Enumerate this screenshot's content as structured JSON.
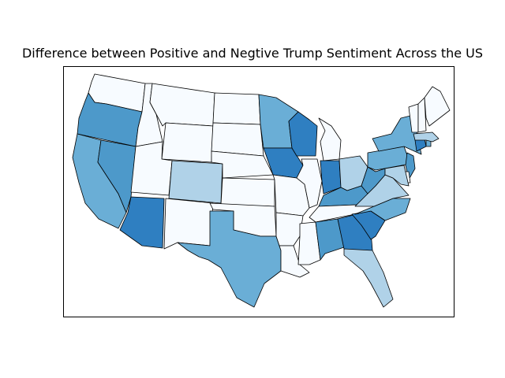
{
  "title": "Difference between Positive and Negtive Trump Sentiment Across the US",
  "palette": {
    "0": "#f7fbff",
    "1": "#b0d2e8",
    "2": "#6aaed6",
    "3": "#4d99ca",
    "4": "#2f7fc1"
  },
  "chart_data": {
    "type": "choropleth",
    "region": "Contiguous United States",
    "color_scale": "Blues",
    "legend": "none",
    "states": [
      {
        "state": "WA",
        "level": 0
      },
      {
        "state": "OR",
        "level": 3
      },
      {
        "state": "CA",
        "level": 2
      },
      {
        "state": "NV",
        "level": 3
      },
      {
        "state": "ID",
        "level": 0
      },
      {
        "state": "MT",
        "level": 0
      },
      {
        "state": "WY",
        "level": 0
      },
      {
        "state": "UT",
        "level": 0
      },
      {
        "state": "AZ",
        "level": 4
      },
      {
        "state": "CO",
        "level": 1
      },
      {
        "state": "NM",
        "level": 0
      },
      {
        "state": "ND",
        "level": 0
      },
      {
        "state": "SD",
        "level": 0
      },
      {
        "state": "NE",
        "level": 0
      },
      {
        "state": "KS",
        "level": 0
      },
      {
        "state": "OK",
        "level": 0
      },
      {
        "state": "TX",
        "level": 2
      },
      {
        "state": "MN",
        "level": 2
      },
      {
        "state": "IA",
        "level": 4
      },
      {
        "state": "MO",
        "level": 0
      },
      {
        "state": "AR",
        "level": 0
      },
      {
        "state": "LA",
        "level": 0
      },
      {
        "state": "WI",
        "level": 4
      },
      {
        "state": "IL",
        "level": 0
      },
      {
        "state": "MI",
        "level": 0
      },
      {
        "state": "IN",
        "level": 4
      },
      {
        "state": "OH",
        "level": 1
      },
      {
        "state": "KY",
        "level": 3
      },
      {
        "state": "TN",
        "level": 0
      },
      {
        "state": "MS",
        "level": 0
      },
      {
        "state": "AL",
        "level": 3
      },
      {
        "state": "GA",
        "level": 4
      },
      {
        "state": "FL",
        "level": 1
      },
      {
        "state": "SC",
        "level": 4
      },
      {
        "state": "NC",
        "level": 2
      },
      {
        "state": "VA",
        "level": 1
      },
      {
        "state": "WV",
        "level": 3
      },
      {
        "state": "PA",
        "level": 2
      },
      {
        "state": "NY",
        "level": 2
      },
      {
        "state": "NJ",
        "level": 3
      },
      {
        "state": "DE",
        "level": 0
      },
      {
        "state": "MD",
        "level": 1
      },
      {
        "state": "CT",
        "level": 4
      },
      {
        "state": "RI",
        "level": 2
      },
      {
        "state": "MA",
        "level": 1
      },
      {
        "state": "VT",
        "level": 0
      },
      {
        "state": "NH",
        "level": 0
      },
      {
        "state": "ME",
        "level": 0
      }
    ]
  }
}
